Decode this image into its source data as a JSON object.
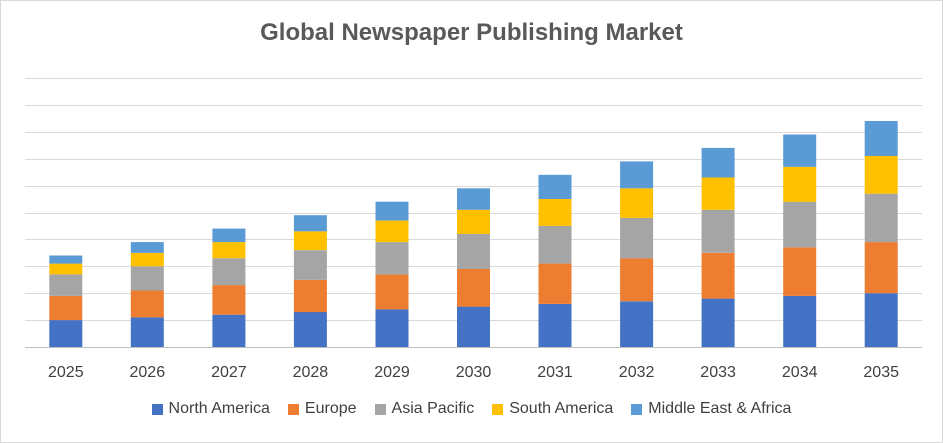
{
  "chart_data": {
    "type": "bar",
    "stacked": true,
    "title": "Global Newspaper Publishing Market",
    "xlabel": "",
    "ylabel": "",
    "ylim": [
      0,
      100
    ],
    "gridlines": 10,
    "legend_position": "bottom",
    "categories": [
      "2025",
      "2026",
      "2027",
      "2028",
      "2029",
      "2030",
      "2031",
      "2032",
      "2033",
      "2034",
      "2035"
    ],
    "series": [
      {
        "name": "North America",
        "color": "#4472C4",
        "values": [
          10,
          11,
          12,
          13,
          14,
          15,
          16,
          17,
          18,
          19,
          20
        ]
      },
      {
        "name": "Europe",
        "color": "#ED7D31",
        "values": [
          9,
          10,
          11,
          12,
          13,
          14,
          15,
          16,
          17,
          18,
          19
        ]
      },
      {
        "name": "Asia Pacific",
        "color": "#A5A5A5",
        "values": [
          8,
          9,
          10,
          11,
          12,
          13,
          14,
          15,
          16,
          17,
          18
        ]
      },
      {
        "name": "South America",
        "color": "#FFC000",
        "values": [
          4,
          5,
          6,
          7,
          8,
          9,
          10,
          11,
          12,
          13,
          14
        ]
      },
      {
        "name": "Middle East & Africa",
        "color": "#5B9BD5",
        "values": [
          3,
          4,
          5,
          6,
          7,
          8,
          9,
          10,
          11,
          12,
          13
        ]
      }
    ]
  }
}
